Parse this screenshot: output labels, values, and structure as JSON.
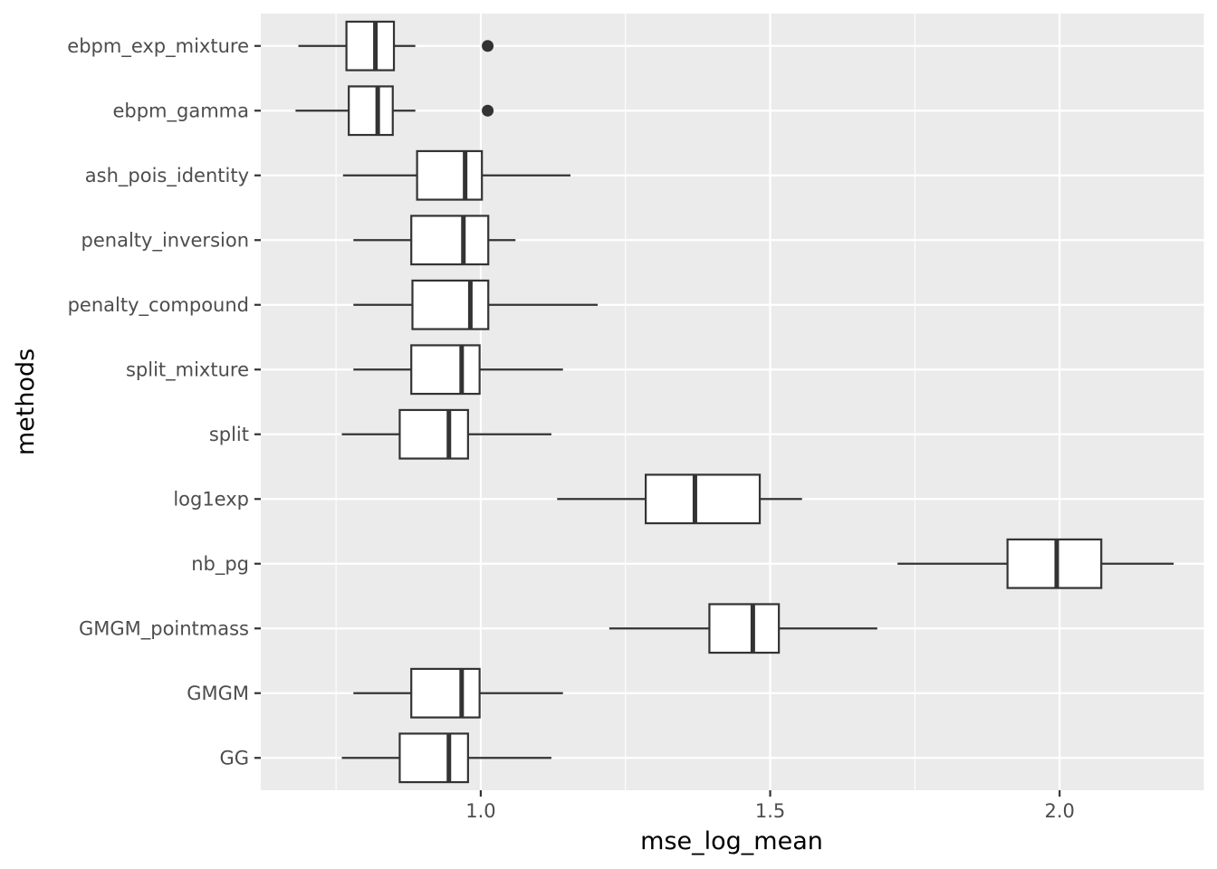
{
  "chart_data": {
    "type": "boxplot",
    "orientation": "horizontal",
    "xlabel": "mse_log_mean",
    "ylabel": "methods",
    "xlim": [
      0.62,
      2.25
    ],
    "x_ticks": [
      1.0,
      1.5,
      2.0
    ],
    "x_tick_labels": [
      "1.0",
      "1.5",
      "2.0"
    ],
    "grid": true,
    "background": "#EBEBEB",
    "box_fill": "#FFFFFF",
    "line_color": "#333333",
    "categories": [
      "ebpm_exp_mixture",
      "ebpm_gamma",
      "ash_pois_identity",
      "penalty_inversion",
      "penalty_compound",
      "split_mixture",
      "split",
      "log1exp",
      "nb_pg",
      "GMGM_pointmass",
      "GMGM",
      "GG"
    ],
    "boxes": [
      {
        "name": "ebpm_exp_mixture",
        "whisker_low": 0.685,
        "q1": 0.768,
        "median": 0.818,
        "q3": 0.85,
        "whisker_high": 0.887,
        "outliers": [
          1.012
        ]
      },
      {
        "name": "ebpm_gamma",
        "whisker_low": 0.68,
        "q1": 0.772,
        "median": 0.822,
        "q3": 0.848,
        "whisker_high": 0.887,
        "outliers": [
          1.012
        ]
      },
      {
        "name": "ash_pois_identity",
        "whisker_low": 0.762,
        "q1": 0.89,
        "median": 0.973,
        "q3": 1.002,
        "whisker_high": 1.155,
        "outliers": []
      },
      {
        "name": "penalty_inversion",
        "whisker_low": 0.78,
        "q1": 0.88,
        "median": 0.97,
        "q3": 1.013,
        "whisker_high": 1.06,
        "outliers": []
      },
      {
        "name": "penalty_compound",
        "whisker_low": 0.78,
        "q1": 0.882,
        "median": 0.982,
        "q3": 1.013,
        "whisker_high": 1.202,
        "outliers": []
      },
      {
        "name": "split_mixture",
        "whisker_low": 0.78,
        "q1": 0.88,
        "median": 0.967,
        "q3": 0.998,
        "whisker_high": 1.142,
        "outliers": []
      },
      {
        "name": "split",
        "whisker_low": 0.76,
        "q1": 0.86,
        "median": 0.945,
        "q3": 0.978,
        "whisker_high": 1.122,
        "outliers": []
      },
      {
        "name": "log1exp",
        "whisker_low": 1.132,
        "q1": 1.285,
        "median": 1.37,
        "q3": 1.482,
        "whisker_high": 1.555,
        "outliers": []
      },
      {
        "name": "nb_pg",
        "whisker_low": 1.72,
        "q1": 1.91,
        "median": 1.995,
        "q3": 2.072,
        "whisker_high": 2.197,
        "outliers": []
      },
      {
        "name": "GMGM_pointmass",
        "whisker_low": 1.222,
        "q1": 1.395,
        "median": 1.47,
        "q3": 1.515,
        "whisker_high": 1.685,
        "outliers": []
      },
      {
        "name": "GMGM",
        "whisker_low": 0.78,
        "q1": 0.88,
        "median": 0.967,
        "q3": 0.998,
        "whisker_high": 1.142,
        "outliers": []
      },
      {
        "name": "GG",
        "whisker_low": 0.76,
        "q1": 0.86,
        "median": 0.945,
        "q3": 0.978,
        "whisker_high": 1.122,
        "outliers": []
      }
    ]
  }
}
